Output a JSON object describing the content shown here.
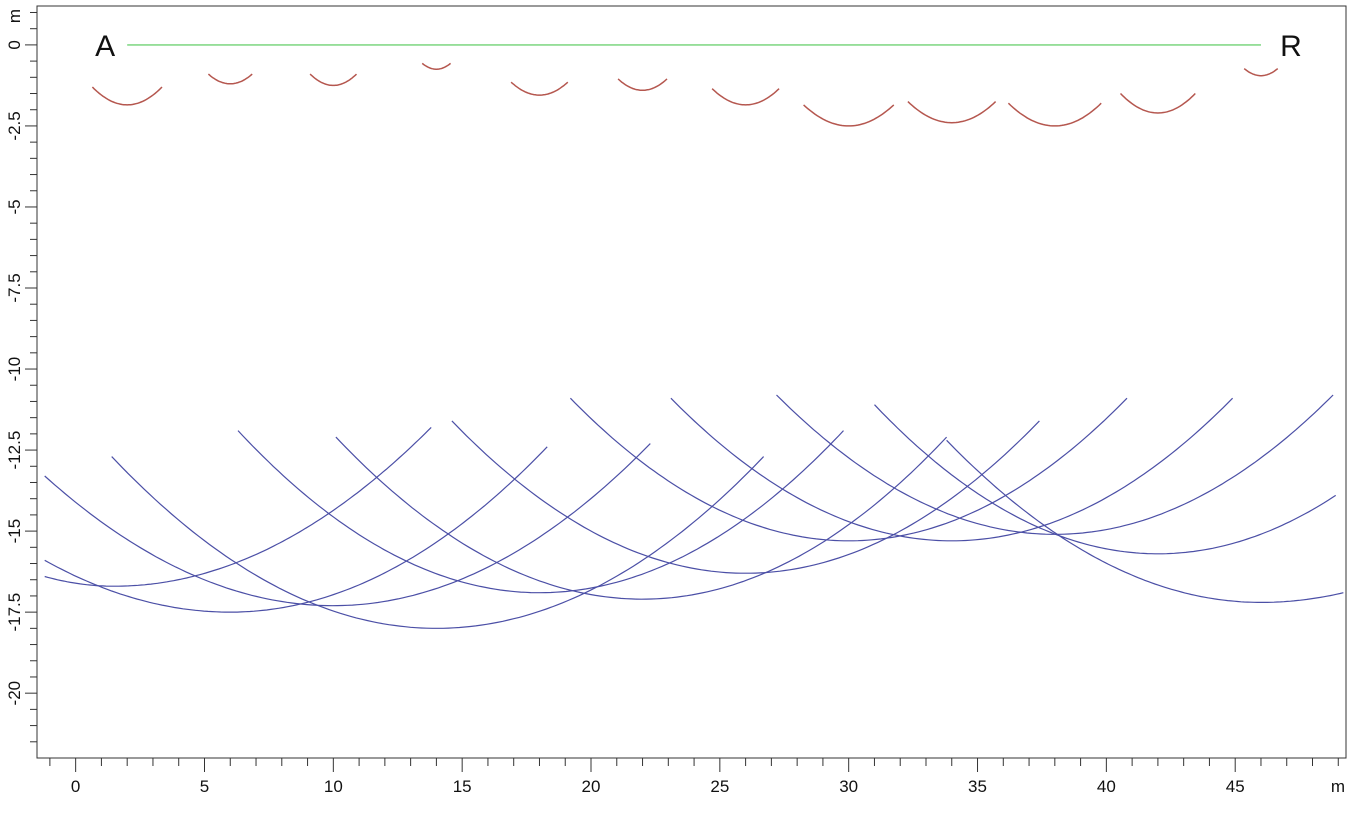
{
  "chart_data": {
    "type": "line",
    "title": "",
    "x_unit_label": "m",
    "y_unit_label": "m",
    "xlim": [
      -1.5,
      49.3
    ],
    "ylim": [
      -22,
      1.2
    ],
    "x_ticks": [
      0,
      5,
      10,
      15,
      20,
      25,
      30,
      35,
      40,
      45
    ],
    "y_ticks": [
      0,
      -2.5,
      -5,
      -7.5,
      -10,
      -12.5,
      -15,
      -17.5,
      -20
    ],
    "grid": false,
    "colors": {
      "baseline": "#86d98a",
      "shallow": "#b5574f",
      "deep": "#4b4fa6",
      "axis": "#333333"
    },
    "end_labels": [
      {
        "text": "A",
        "x": 2
      },
      {
        "text": "R",
        "x": 46
      }
    ],
    "baseline": {
      "name": "",
      "x": [
        2,
        46
      ],
      "y": [
        0,
        0
      ]
    },
    "shallow_arcs": [
      {
        "cx": 2.0,
        "bottom": -1.85,
        "half_width": 1.35,
        "rise": 0.55
      },
      {
        "cx": 6.0,
        "bottom": -1.2,
        "half_width": 0.85,
        "rise": 0.3
      },
      {
        "cx": 10.0,
        "bottom": -1.25,
        "half_width": 0.9,
        "rise": 0.35
      },
      {
        "cx": 14.0,
        "bottom": -0.75,
        "half_width": 0.55,
        "rise": 0.18
      },
      {
        "cx": 18.0,
        "bottom": -1.55,
        "half_width": 1.1,
        "rise": 0.4
      },
      {
        "cx": 22.0,
        "bottom": -1.4,
        "half_width": 0.95,
        "rise": 0.35
      },
      {
        "cx": 26.0,
        "bottom": -1.85,
        "half_width": 1.3,
        "rise": 0.5
      },
      {
        "cx": 30.0,
        "bottom": -2.5,
        "half_width": 1.75,
        "rise": 0.65
      },
      {
        "cx": 34.0,
        "bottom": -2.4,
        "half_width": 1.7,
        "rise": 0.65
      },
      {
        "cx": 38.0,
        "bottom": -2.5,
        "half_width": 1.8,
        "rise": 0.7
      },
      {
        "cx": 42.0,
        "bottom": -2.1,
        "half_width": 1.45,
        "rise": 0.6
      },
      {
        "cx": 46.0,
        "bottom": -0.95,
        "half_width": 0.65,
        "rise": 0.22
      }
    ],
    "deep_arcs": [
      {
        "cx": 1.5,
        "bottom": -16.7,
        "x_start": -1.2,
        "x_end": 13.8,
        "y_start": -16.4,
        "y_end": -11.8
      },
      {
        "cx": 6.0,
        "bottom": -17.5,
        "x_start": -1.2,
        "x_end": 18.3,
        "y_start": -15.9,
        "y_end": -12.4
      },
      {
        "cx": 10.0,
        "bottom": -17.3,
        "x_start": -1.2,
        "x_end": 22.3,
        "y_start": -13.3,
        "y_end": -12.3
      },
      {
        "cx": 14.0,
        "bottom": -18.0,
        "x_start": 1.4,
        "x_end": 26.7,
        "y_start": -12.7,
        "y_end": -12.7
      },
      {
        "cx": 18.0,
        "bottom": -16.9,
        "x_start": 6.3,
        "x_end": 29.8,
        "y_start": -11.9,
        "y_end": -11.9
      },
      {
        "cx": 22.0,
        "bottom": -17.1,
        "x_start": 10.1,
        "x_end": 33.8,
        "y_start": -12.1,
        "y_end": -12.1
      },
      {
        "cx": 26.0,
        "bottom": -16.3,
        "x_start": 14.6,
        "x_end": 37.4,
        "y_start": -11.6,
        "y_end": -11.6
      },
      {
        "cx": 30.0,
        "bottom": -15.3,
        "x_start": 19.2,
        "x_end": 40.8,
        "y_start": -10.9,
        "y_end": -10.9
      },
      {
        "cx": 34.0,
        "bottom": -15.3,
        "x_start": 23.1,
        "x_end": 44.9,
        "y_start": -10.9,
        "y_end": -10.9
      },
      {
        "cx": 38.0,
        "bottom": -15.1,
        "x_start": 27.2,
        "x_end": 48.8,
        "y_start": -10.8,
        "y_end": -10.8
      },
      {
        "cx": 42.0,
        "bottom": -15.7,
        "x_start": 31.0,
        "x_end": 48.9,
        "y_start": -11.1,
        "y_end": -13.9
      },
      {
        "cx": 46.0,
        "bottom": -17.2,
        "x_start": 33.8,
        "x_end": 49.2,
        "y_start": -12.2,
        "y_end": -16.9
      }
    ]
  }
}
